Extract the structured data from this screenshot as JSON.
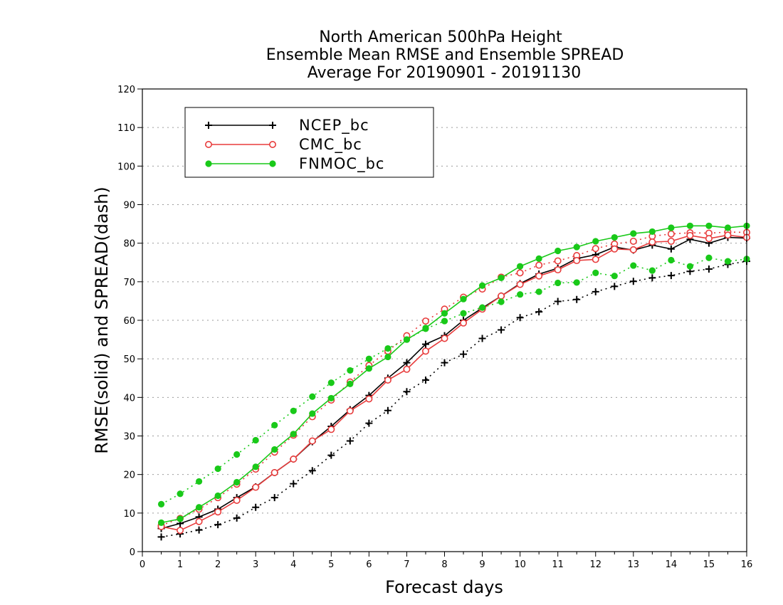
{
  "chart_data": {
    "type": "line",
    "title": [
      "North American 500hPa Height",
      "Ensemble Mean RMSE and Ensemble SPREAD",
      "Average For 20190901 - 20191130"
    ],
    "xlabel": "Forecast days",
    "ylabel": "RMSE(solid) and SPREAD(dash)",
    "xlim": [
      0,
      16
    ],
    "ylim": [
      0,
      120
    ],
    "xticks": [
      0,
      1,
      2,
      3,
      4,
      5,
      6,
      7,
      8,
      9,
      10,
      11,
      12,
      13,
      14,
      15,
      16
    ],
    "yticks": [
      0,
      10,
      20,
      30,
      40,
      50,
      60,
      70,
      80,
      90,
      100,
      110,
      120
    ],
    "grid": "horizontal-dotted",
    "legend_position": "top-left",
    "x": [
      0.5,
      1,
      1.5,
      2,
      2.5,
      3,
      3.5,
      4,
      4.5,
      5,
      5.5,
      6,
      6.5,
      7,
      7.5,
      8,
      8.5,
      9,
      9.5,
      10,
      10.5,
      11,
      11.5,
      12,
      12.5,
      13,
      13.5,
      14,
      14.5,
      15,
      15.5,
      16
    ],
    "series": [
      {
        "name": "NCEP_bc",
        "marker": "plus",
        "color": "#000000",
        "rmse": [
          6,
          7.3,
          9,
          11,
          14,
          16.8,
          20.5,
          24,
          28.5,
          32.5,
          36.8,
          40.5,
          45,
          49,
          53.8,
          56,
          60,
          63.2,
          66.3,
          69.5,
          72,
          73.5,
          76,
          77,
          79,
          78.2,
          79.5,
          78.5,
          81,
          80,
          81.5,
          81.3
        ],
        "spread": [
          3.8,
          4.6,
          5.6,
          7,
          8.7,
          11.5,
          14,
          17.6,
          21,
          25,
          28.7,
          33.3,
          36.6,
          41.5,
          44.5,
          49,
          51.2,
          55.3,
          57.5,
          60.7,
          62.2,
          64.9,
          65.4,
          67.4,
          68.8,
          70.1,
          71,
          71.6,
          72.7,
          73.3,
          74.5,
          75.3
        ]
      },
      {
        "name": "CMC_bc",
        "marker": "open-circle",
        "color": "#e83c3c",
        "rmse": [
          6.5,
          5.5,
          7.8,
          10.3,
          13.3,
          16.7,
          20.5,
          24,
          28.7,
          31.7,
          36.5,
          39.6,
          44.5,
          47.3,
          52,
          55.3,
          59.3,
          62.9,
          66.3,
          69.3,
          71.5,
          73.1,
          75.5,
          75.8,
          78.5,
          78.3,
          80.3,
          80.5,
          82,
          81.2,
          82.1,
          81.5
        ],
        "spread": [
          6.8,
          8.6,
          11,
          14,
          17.5,
          21.4,
          25.8,
          30.2,
          35,
          39.3,
          44,
          48.3,
          52,
          56,
          59.8,
          62.9,
          66,
          68.1,
          71.2,
          72.3,
          74.3,
          75.4,
          76.8,
          78.6,
          79.8,
          80.5,
          81.8,
          82.4,
          82.7,
          82.6,
          82.9,
          82.8
        ]
      },
      {
        "name": "FNMOC_bc",
        "marker": "filled-circle",
        "color": "#19c919",
        "rmse": [
          7.5,
          8.5,
          11.5,
          14.5,
          18,
          22,
          26.5,
          30.5,
          35.8,
          39.8,
          43.5,
          47.5,
          50.5,
          55,
          58,
          61.8,
          65.5,
          69,
          71,
          74,
          76,
          78,
          79,
          80.5,
          81.5,
          82.5,
          83,
          84,
          84.5,
          84.5,
          84,
          84.5
        ],
        "spread": [
          12.3,
          15,
          18.2,
          21.5,
          25.2,
          28.9,
          32.8,
          36.5,
          40.2,
          43.8,
          47,
          50,
          52.7,
          55,
          57.8,
          59.8,
          61.8,
          63.3,
          64.8,
          66.7,
          67.4,
          69.7,
          69.8,
          72.3,
          71.5,
          74.2,
          72.9,
          75.6,
          74,
          76.2,
          75.3,
          75.9
        ]
      }
    ]
  }
}
